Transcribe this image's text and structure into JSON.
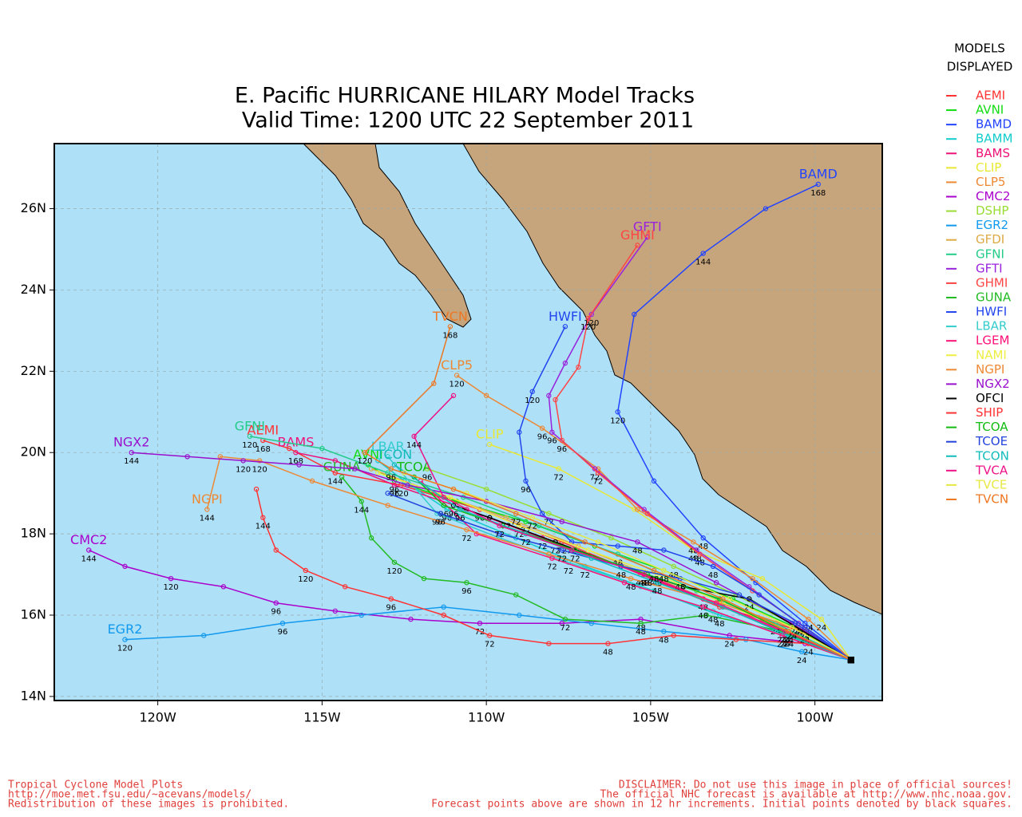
{
  "header": {
    "title": "E. Pacific HURRICANE HILARY Model Tracks",
    "subtitle": "Valid Time: 1200 UTC 22 September 2011"
  },
  "map": {
    "xlim": [
      -123.15,
      -97.95
    ],
    "ylim": [
      13.9,
      27.6
    ],
    "xticks": [
      {
        "value": -120,
        "label": "120W"
      },
      {
        "value": -115,
        "label": "115W"
      },
      {
        "value": -110,
        "label": "110W"
      },
      {
        "value": -105,
        "label": "105W"
      },
      {
        "value": -100,
        "label": "100W"
      }
    ],
    "yticks": [
      {
        "value": 14,
        "label": "14N"
      },
      {
        "value": 16,
        "label": "16N"
      },
      {
        "value": 18,
        "label": "18N"
      },
      {
        "value": 20,
        "label": "20N"
      },
      {
        "value": 22,
        "label": "22N"
      },
      {
        "value": 24,
        "label": "24N"
      },
      {
        "value": 26,
        "label": "26N"
      }
    ],
    "grid": true
  },
  "legend": {
    "title": [
      "MODELS",
      "DISPLAYED"
    ]
  },
  "models": [
    {
      "name": "AEMI",
      "color": "#ff3333",
      "tagged": true,
      "lon": [
        -98.9,
        -100.4,
        -101.6,
        -102.9,
        -105.3,
        -107.7,
        -110.2,
        -112.6,
        -114.6,
        -116.0,
        -116.8
      ],
      "lat": [
        14.9,
        15.6,
        15.9,
        16.2,
        17.0,
        17.8,
        18.6,
        19.2,
        19.5,
        20.1,
        20.3
      ],
      "hours": [
        null,
        24,
        null,
        null,
        48,
        72,
        96,
        120,
        144,
        null,
        168
      ]
    },
    {
      "name": "AVNI",
      "color": "#11dd11",
      "tagged": true,
      "lon": [
        -98.9,
        -100.6,
        -102.5,
        -104.6,
        -106.7,
        -108.8,
        -110.9,
        -112.8,
        -113.6
      ],
      "lat": [
        14.9,
        15.7,
        16.4,
        17.1,
        17.7,
        18.3,
        18.8,
        19.3,
        19.7
      ],
      "hours": [
        null,
        24,
        null,
        48,
        null,
        72,
        null,
        96,
        null
      ]
    },
    {
      "name": "BAMD",
      "color": "#2244ff",
      "tagged": true,
      "lon": [
        -98.9,
        -100.3,
        -101.8,
        -103.4,
        -104.9,
        -106.0,
        -105.5,
        -103.4,
        -101.5,
        -99.9
      ],
      "lat": [
        14.9,
        15.8,
        16.8,
        17.9,
        19.3,
        21.0,
        23.4,
        24.9,
        26.0,
        26.6
      ],
      "hours": [
        null,
        24,
        null,
        48,
        null,
        120,
        null,
        144,
        null,
        168
      ]
    },
    {
      "name": "BAMM",
      "color": "#11cccc",
      "tagged": false,
      "lon": [
        -98.9,
        -100.8,
        -102.9,
        -104.9,
        -107.0,
        -109.1,
        -111.2,
        -112.5,
        -113.3
      ],
      "lat": [
        14.9,
        15.5,
        16.0,
        16.6,
        17.2,
        17.9,
        18.6,
        19.3,
        19.8
      ],
      "hours": [
        null,
        24,
        48,
        null,
        72,
        null,
        96,
        null,
        null
      ]
    },
    {
      "name": "BAMS",
      "color": "#ee1177",
      "tagged": true,
      "lon": [
        -98.9,
        -101.0,
        -103.4,
        -105.9,
        -108.3,
        -110.6,
        -112.8,
        -114.6,
        -115.8
      ],
      "lat": [
        14.9,
        15.6,
        16.4,
        17.2,
        17.9,
        18.6,
        19.2,
        19.8,
        20.0
      ],
      "hours": [
        null,
        null,
        48,
        null,
        72,
        null,
        96,
        null,
        168
      ]
    },
    {
      "name": "CLIP",
      "color": "#e8e833",
      "tagged": true,
      "lon": [
        -98.9,
        -99.8,
        -101.6,
        -103.7,
        -105.5,
        -107.8,
        -109.9
      ],
      "lat": [
        14.9,
        15.9,
        16.9,
        17.6,
        18.6,
        19.6,
        20.2
      ],
      "hours": [
        null,
        24,
        null,
        48,
        null,
        72,
        null
      ]
    },
    {
      "name": "CLP5",
      "color": "#ee8833",
      "tagged": true,
      "lon": [
        -98.9,
        -100.2,
        -101.9,
        -103.7,
        -105.4,
        -106.6,
        -108.3,
        -110.0,
        -110.9
      ],
      "lat": [
        14.9,
        15.9,
        16.9,
        17.8,
        18.6,
        19.6,
        20.6,
        21.4,
        21.9
      ],
      "hours": [
        null,
        24,
        null,
        48,
        null,
        null,
        96,
        null,
        120
      ]
    },
    {
      "name": "CMC2",
      "color": "#aa00cc",
      "tagged": true,
      "lon": [
        -98.9,
        -100.3,
        -102.6,
        -105.3,
        -107.7,
        -110.2,
        -112.3,
        -114.6,
        -116.4,
        -118.0,
        -119.6,
        -121.0,
        -122.1
      ],
      "lat": [
        14.9,
        15.3,
        15.5,
        15.9,
        15.8,
        15.8,
        15.9,
        16.1,
        16.3,
        16.7,
        16.9,
        17.2,
        17.6
      ],
      "hours": [
        null,
        null,
        24,
        48,
        null,
        72,
        null,
        null,
        96,
        null,
        120,
        null,
        144
      ]
    },
    {
      "name": "DSHP",
      "color": "#99dd33",
      "tagged": false,
      "lon": [
        -98.9,
        -100.5,
        -102.4,
        -104.3,
        -106.2,
        -108.1,
        -110.0,
        -111.8
      ],
      "lat": [
        14.9,
        15.7,
        16.5,
        17.2,
        17.9,
        18.5,
        19.1,
        19.6
      ],
      "hours": [
        null,
        24,
        null,
        48,
        null,
        72,
        null,
        96
      ]
    },
    {
      "name": "EGR2",
      "color": "#1199ee",
      "tagged": true,
      "lon": [
        -98.9,
        -100.4,
        -102.1,
        -104.6,
        -106.8,
        -109.0,
        -111.3,
        -113.8,
        -116.2,
        -118.6,
        -121.0
      ],
      "lat": [
        14.9,
        15.1,
        15.4,
        15.6,
        15.8,
        16.0,
        16.2,
        16.0,
        15.8,
        15.5,
        15.4
      ],
      "hours": [
        null,
        24,
        null,
        48,
        null,
        null,
        null,
        null,
        96,
        null,
        120
      ]
    },
    {
      "name": "GFDI",
      "color": "#ddaa44",
      "tagged": false,
      "lon": [
        -98.9,
        -100.9,
        -103.0,
        -105.1,
        -107.2,
        -109.4,
        -111.5,
        -113.5
      ],
      "lat": [
        14.9,
        15.6,
        16.3,
        17.0,
        17.7,
        18.4,
        19.0,
        19.6
      ],
      "hours": [
        null,
        24,
        null,
        48,
        null,
        72,
        null,
        null
      ]
    },
    {
      "name": "GFNI",
      "color": "#22cc88",
      "tagged": true,
      "lon": [
        -98.9,
        -101.2,
        -103.6,
        -106.0,
        -108.4,
        -110.7,
        -113.0,
        -115.0,
        -117.2
      ],
      "lat": [
        14.9,
        15.8,
        16.6,
        17.5,
        18.2,
        18.9,
        19.5,
        20.1,
        20.4
      ],
      "hours": [
        null,
        24,
        null,
        48,
        null,
        null,
        null,
        null,
        120
      ]
    },
    {
      "name": "GFTI",
      "color": "#9922dd",
      "tagged": true,
      "lon": [
        -98.9,
        -100.5,
        -102.0,
        -103.6,
        -105.2,
        -106.7,
        -108.0,
        -108.1,
        -107.6,
        -106.8,
        -105.1
      ],
      "lat": [
        14.9,
        15.8,
        16.7,
        17.6,
        18.6,
        19.6,
        20.5,
        21.4,
        22.2,
        23.4,
        25.3
      ],
      "hours": [
        null,
        24,
        null,
        48,
        null,
        72,
        96,
        null,
        null,
        120,
        null
      ]
    },
    {
      "name": "GHMI",
      "color": "#ff4444",
      "tagged": true,
      "lon": [
        -98.9,
        -100.3,
        -101.9,
        -103.5,
        -105.1,
        -106.6,
        -107.7,
        -107.9,
        -107.2,
        -106.9,
        -105.4
      ],
      "lat": [
        14.9,
        15.7,
        16.6,
        17.5,
        18.5,
        19.5,
        20.3,
        21.3,
        22.1,
        23.3,
        25.1
      ],
      "hours": [
        null,
        24,
        null,
        48,
        null,
        72,
        96,
        null,
        null,
        120,
        null
      ]
    },
    {
      "name": "GUNA",
      "color": "#22bb22",
      "tagged": true,
      "lon": [
        -98.9,
        -101.0,
        -103.3,
        -105.3,
        -107.6,
        -109.1,
        -110.6,
        -111.9,
        -112.8,
        -113.5,
        -113.8,
        -114.4
      ],
      "lat": [
        14.9,
        15.6,
        16.0,
        15.8,
        15.9,
        16.5,
        16.8,
        16.9,
        17.3,
        17.9,
        18.8,
        19.4
      ],
      "hours": [
        null,
        24,
        null,
        48,
        72,
        null,
        96,
        null,
        120,
        null,
        144,
        null
      ]
    },
    {
      "name": "HWFI",
      "color": "#2244ee",
      "tagged": true,
      "lon": [
        -98.9,
        -100.3,
        -101.7,
        -103.1,
        -104.6,
        -106.0,
        -107.4,
        -108.3,
        -108.8,
        -109.0,
        -108.6,
        -107.6
      ],
      "lat": [
        14.9,
        15.7,
        16.5,
        17.2,
        17.6,
        17.7,
        17.8,
        18.5,
        19.3,
        20.5,
        21.5,
        23.1
      ],
      "hours": [
        null,
        24,
        null,
        48,
        null,
        null,
        72,
        null,
        96,
        null,
        120,
        null
      ]
    },
    {
      "name": "LBAR",
      "color": "#33cccc",
      "tagged": true,
      "lon": [
        -98.9,
        -100.9,
        -103.1,
        -105.3,
        -107.5,
        -109.6,
        -111.5,
        -113.0
      ],
      "lat": [
        14.9,
        15.5,
        16.1,
        16.7,
        17.3,
        17.9,
        18.5,
        19.9
      ],
      "hours": [
        null,
        24,
        48,
        null,
        72,
        null,
        96,
        null
      ]
    },
    {
      "name": "LGEM",
      "color": "#ff1177",
      "tagged": false,
      "lon": [
        -98.9,
        -101.0,
        -103.4,
        -105.8,
        -108.0,
        -110.3,
        -112.0
      ],
      "lat": [
        14.9,
        15.5,
        16.2,
        16.8,
        17.4,
        18.0,
        19.3
      ],
      "hours": [
        null,
        24,
        48,
        null,
        72,
        null,
        null
      ]
    },
    {
      "name": "NAMI",
      "color": "#eeee44",
      "tagged": false,
      "lon": [
        -98.9,
        -100.8,
        -102.8,
        -104.8,
        -106.9,
        -109.0,
        -111.1,
        -113.3
      ],
      "lat": [
        14.9,
        15.6,
        16.3,
        17.0,
        17.6,
        18.2,
        18.9,
        19.5
      ],
      "hours": [
        null,
        24,
        null,
        48,
        null,
        72,
        null,
        null
      ]
    },
    {
      "name": "NGPI",
      "color": "#ee8833",
      "tagged": true,
      "lon": [
        -98.9,
        -100.3,
        -102.9,
        -105.6,
        -108.1,
        -110.6,
        -113.0,
        -115.3,
        -116.9,
        -118.1,
        -118.5
      ],
      "lat": [
        14.9,
        15.6,
        16.3,
        16.9,
        17.5,
        18.1,
        18.7,
        19.3,
        19.8,
        19.9,
        18.6
      ],
      "hours": [
        null,
        24,
        null,
        48,
        null,
        72,
        null,
        null,
        120,
        null,
        144
      ]
    },
    {
      "name": "NGX2",
      "color": "#9911cc",
      "tagged": true,
      "lon": [
        -98.9,
        -100.7,
        -103.0,
        -105.4,
        -107.7,
        -110.0,
        -112.4,
        -114.0,
        -115.7,
        -117.4,
        -119.1,
        -120.8
      ],
      "lat": [
        14.9,
        15.8,
        16.8,
        17.8,
        18.3,
        18.8,
        19.2,
        19.6,
        19.7,
        19.8,
        19.9,
        20.0
      ],
      "hours": [
        null,
        null,
        null,
        48,
        null,
        null,
        null,
        null,
        null,
        120,
        null,
        144
      ]
    },
    {
      "name": "OFCI",
      "color": "#000000",
      "tagged": false,
      "lon": [
        -98.9,
        -102.0,
        -104.0,
        -105.9,
        -107.9,
        -109.9,
        -111.0
      ],
      "lat": [
        14.9,
        16.4,
        16.7,
        17.2,
        17.8,
        18.4,
        18.7
      ],
      "hours": [
        null,
        24,
        null,
        48,
        72,
        null,
        96
      ]
    },
    {
      "name": "SHIP",
      "color": "#ff3333",
      "tagged": false,
      "lon": [
        -98.9,
        -100.2,
        -102.4,
        -104.3,
        -106.3,
        -108.1,
        -109.9,
        -111.3,
        -112.9,
        -114.3,
        -115.5,
        -116.4,
        -116.8,
        -117.0
      ],
      "lat": [
        14.9,
        15.3,
        15.4,
        15.5,
        15.3,
        15.3,
        15.5,
        16.0,
        16.4,
        16.7,
        17.1,
        17.6,
        18.4,
        19.1
      ],
      "hours": [
        null,
        24,
        null,
        null,
        48,
        null,
        72,
        null,
        96,
        null,
        120,
        null,
        144,
        null
      ]
    },
    {
      "name": "TCOA",
      "color": "#11bb11",
      "tagged": true,
      "lon": [
        -98.9,
        -100.9,
        -102.9,
        -105.1,
        -107.3,
        -109.5,
        -111.3,
        -112.2
      ],
      "lat": [
        14.9,
        15.6,
        16.4,
        17.0,
        17.6,
        18.2,
        18.7,
        19.4
      ],
      "hours": [
        null,
        24,
        null,
        48,
        72,
        null,
        96,
        null
      ]
    },
    {
      "name": "TCOE",
      "color": "#2244dd",
      "tagged": false,
      "lon": [
        -98.9,
        -100.6,
        -102.3,
        -104.1,
        -105.9,
        -107.7,
        -109.6,
        -111.4,
        -113.0
      ],
      "lat": [
        14.9,
        15.8,
        16.5,
        16.9,
        17.2,
        17.6,
        18.0,
        18.5,
        19.0
      ],
      "hours": [
        null,
        24,
        null,
        48,
        null,
        72,
        null,
        96,
        null
      ]
    },
    {
      "name": "TCON",
      "color": "#11bbbb",
      "tagged": true,
      "lon": [
        -98.9,
        -100.8,
        -102.8,
        -104.8,
        -106.8,
        -108.8,
        -110.8,
        -112.8
      ],
      "lat": [
        14.9,
        15.5,
        16.2,
        16.8,
        17.4,
        18.0,
        18.6,
        19.7
      ],
      "hours": [
        null,
        24,
        null,
        48,
        null,
        72,
        96,
        null
      ]
    },
    {
      "name": "TVCA",
      "color": "#ee1188",
      "tagged": false,
      "lon": [
        -98.9,
        -100.9,
        -103.0,
        -105.2,
        -107.4,
        -109.6,
        -111.3,
        -112.2,
        -111.0
      ],
      "lat": [
        14.9,
        15.6,
        16.3,
        17.0,
        17.6,
        18.2,
        18.9,
        20.4,
        21.4
      ],
      "hours": [
        null,
        24,
        null,
        48,
        null,
        72,
        null,
        144,
        null
      ]
    },
    {
      "name": "TVCE",
      "color": "#e8e844",
      "tagged": false,
      "lon": [
        -98.9,
        -100.7,
        -102.6,
        -104.6,
        -106.6,
        -108.6,
        -110.6,
        -112.5
      ],
      "lat": [
        14.9,
        15.7,
        16.4,
        17.1,
        17.8,
        18.4,
        19.0,
        19.5
      ],
      "hours": [
        null,
        24,
        null,
        48,
        null,
        72,
        null,
        null
      ]
    },
    {
      "name": "TVCN",
      "color": "#ee7722",
      "tagged": true,
      "lon": [
        -98.9,
        -100.8,
        -102.8,
        -104.9,
        -107.0,
        -109.1,
        -111.0,
        -112.9,
        -113.7,
        -111.6,
        -111.1
      ],
      "lat": [
        14.9,
        15.6,
        16.4,
        17.1,
        17.8,
        18.5,
        19.1,
        19.6,
        20.0,
        21.7,
        23.1
      ],
      "hours": [
        null,
        24,
        null,
        48,
        null,
        72,
        null,
        96,
        120,
        null,
        168
      ]
    }
  ],
  "footer": {
    "left": [
      "Tropical Cyclone Model Plots",
      "http://moe.met.fsu.edu/~acevans/models/",
      "Redistribution of these images is prohibited."
    ],
    "right": [
      "DISCLAIMER: Do not use this image in place of official sources!",
      "The official NHC forecast is available at http://www.nhc.noaa.gov.",
      "Forecast points above are shown in 12 hr increments. Initial points denoted by black squares."
    ]
  }
}
